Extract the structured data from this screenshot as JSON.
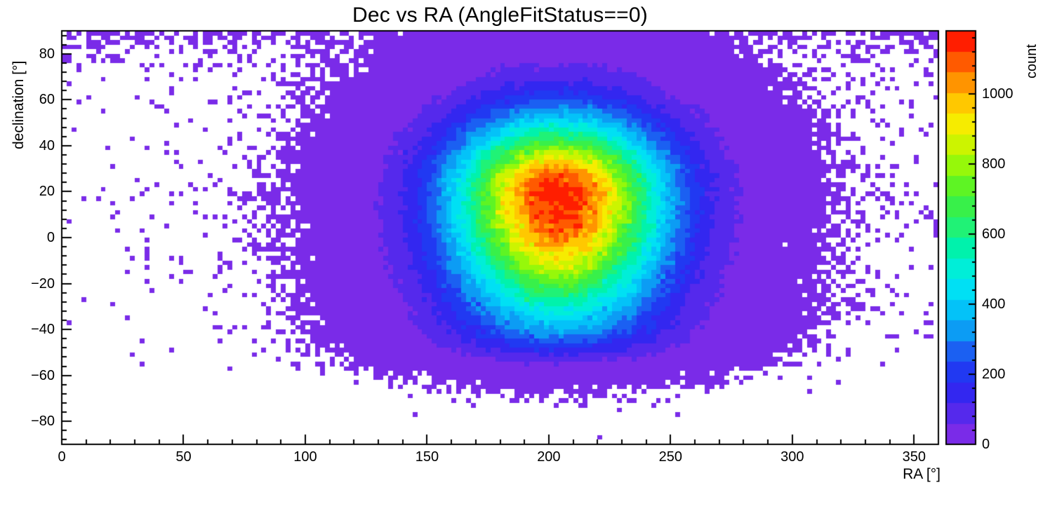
{
  "chart_data": {
    "type": "heatmap",
    "title": "Dec vs RA (AngleFitStatus==0)",
    "xlabel": "RA [°]",
    "ylabel": "declination [°]",
    "zlabel": "count",
    "xlim": [
      0,
      360
    ],
    "ylim": [
      -90,
      90
    ],
    "zlim": [
      0,
      1180
    ],
    "xticks": [
      0,
      50,
      100,
      150,
      200,
      250,
      300,
      350
    ],
    "yticks": [
      -80,
      -60,
      -40,
      -20,
      0,
      20,
      40,
      60,
      80
    ],
    "zticks": [
      0,
      200,
      400,
      600,
      800,
      1000
    ],
    "x_minor_step": 10,
    "y_minor_step": 4,
    "z_minor_step": 40,
    "n_levels": 20,
    "bin_size_deg": 2,
    "nx": 180,
    "ny": 90,
    "grid": false,
    "legend_position": "right-colorbar",
    "frame_color": "#000000",
    "background": "#ffffff",
    "text_color": "#000000",
    "palette": [
      "#7a2be8",
      "#5529ec",
      "#3327f0",
      "#2139f2",
      "#1b60f2",
      "#0c9cf4",
      "#04c2f8",
      "#00e0f4",
      "#00eed8",
      "#00f2ac",
      "#20f276",
      "#38f04a",
      "#5ef424",
      "#96f80a",
      "#ccf400",
      "#f6ec00",
      "#ffc800",
      "#ff9400",
      "#ff5a00",
      "#ff1e00"
    ],
    "peak": {
      "ra": 204,
      "dec": 17,
      "count": 1175
    },
    "distribution_model": {
      "type": "gaussian2d_poisson",
      "amplitude": 1175,
      "center_ra": 204,
      "center_dec": 17,
      "sigma_ra": 30,
      "sigma_dec_north": 24,
      "sigma_dec_south": 37,
      "sigma_blend": 6,
      "halo_amplitude": 0.8,
      "halo_sigma_ra": 75,
      "halo_sigma_dec": 55,
      "south_cutoff_dec": -52,
      "south_cutoff_width": 3.5,
      "top_edge_amplitude": 1.3,
      "top_edge_scale": 6,
      "seed": 7
    }
  }
}
